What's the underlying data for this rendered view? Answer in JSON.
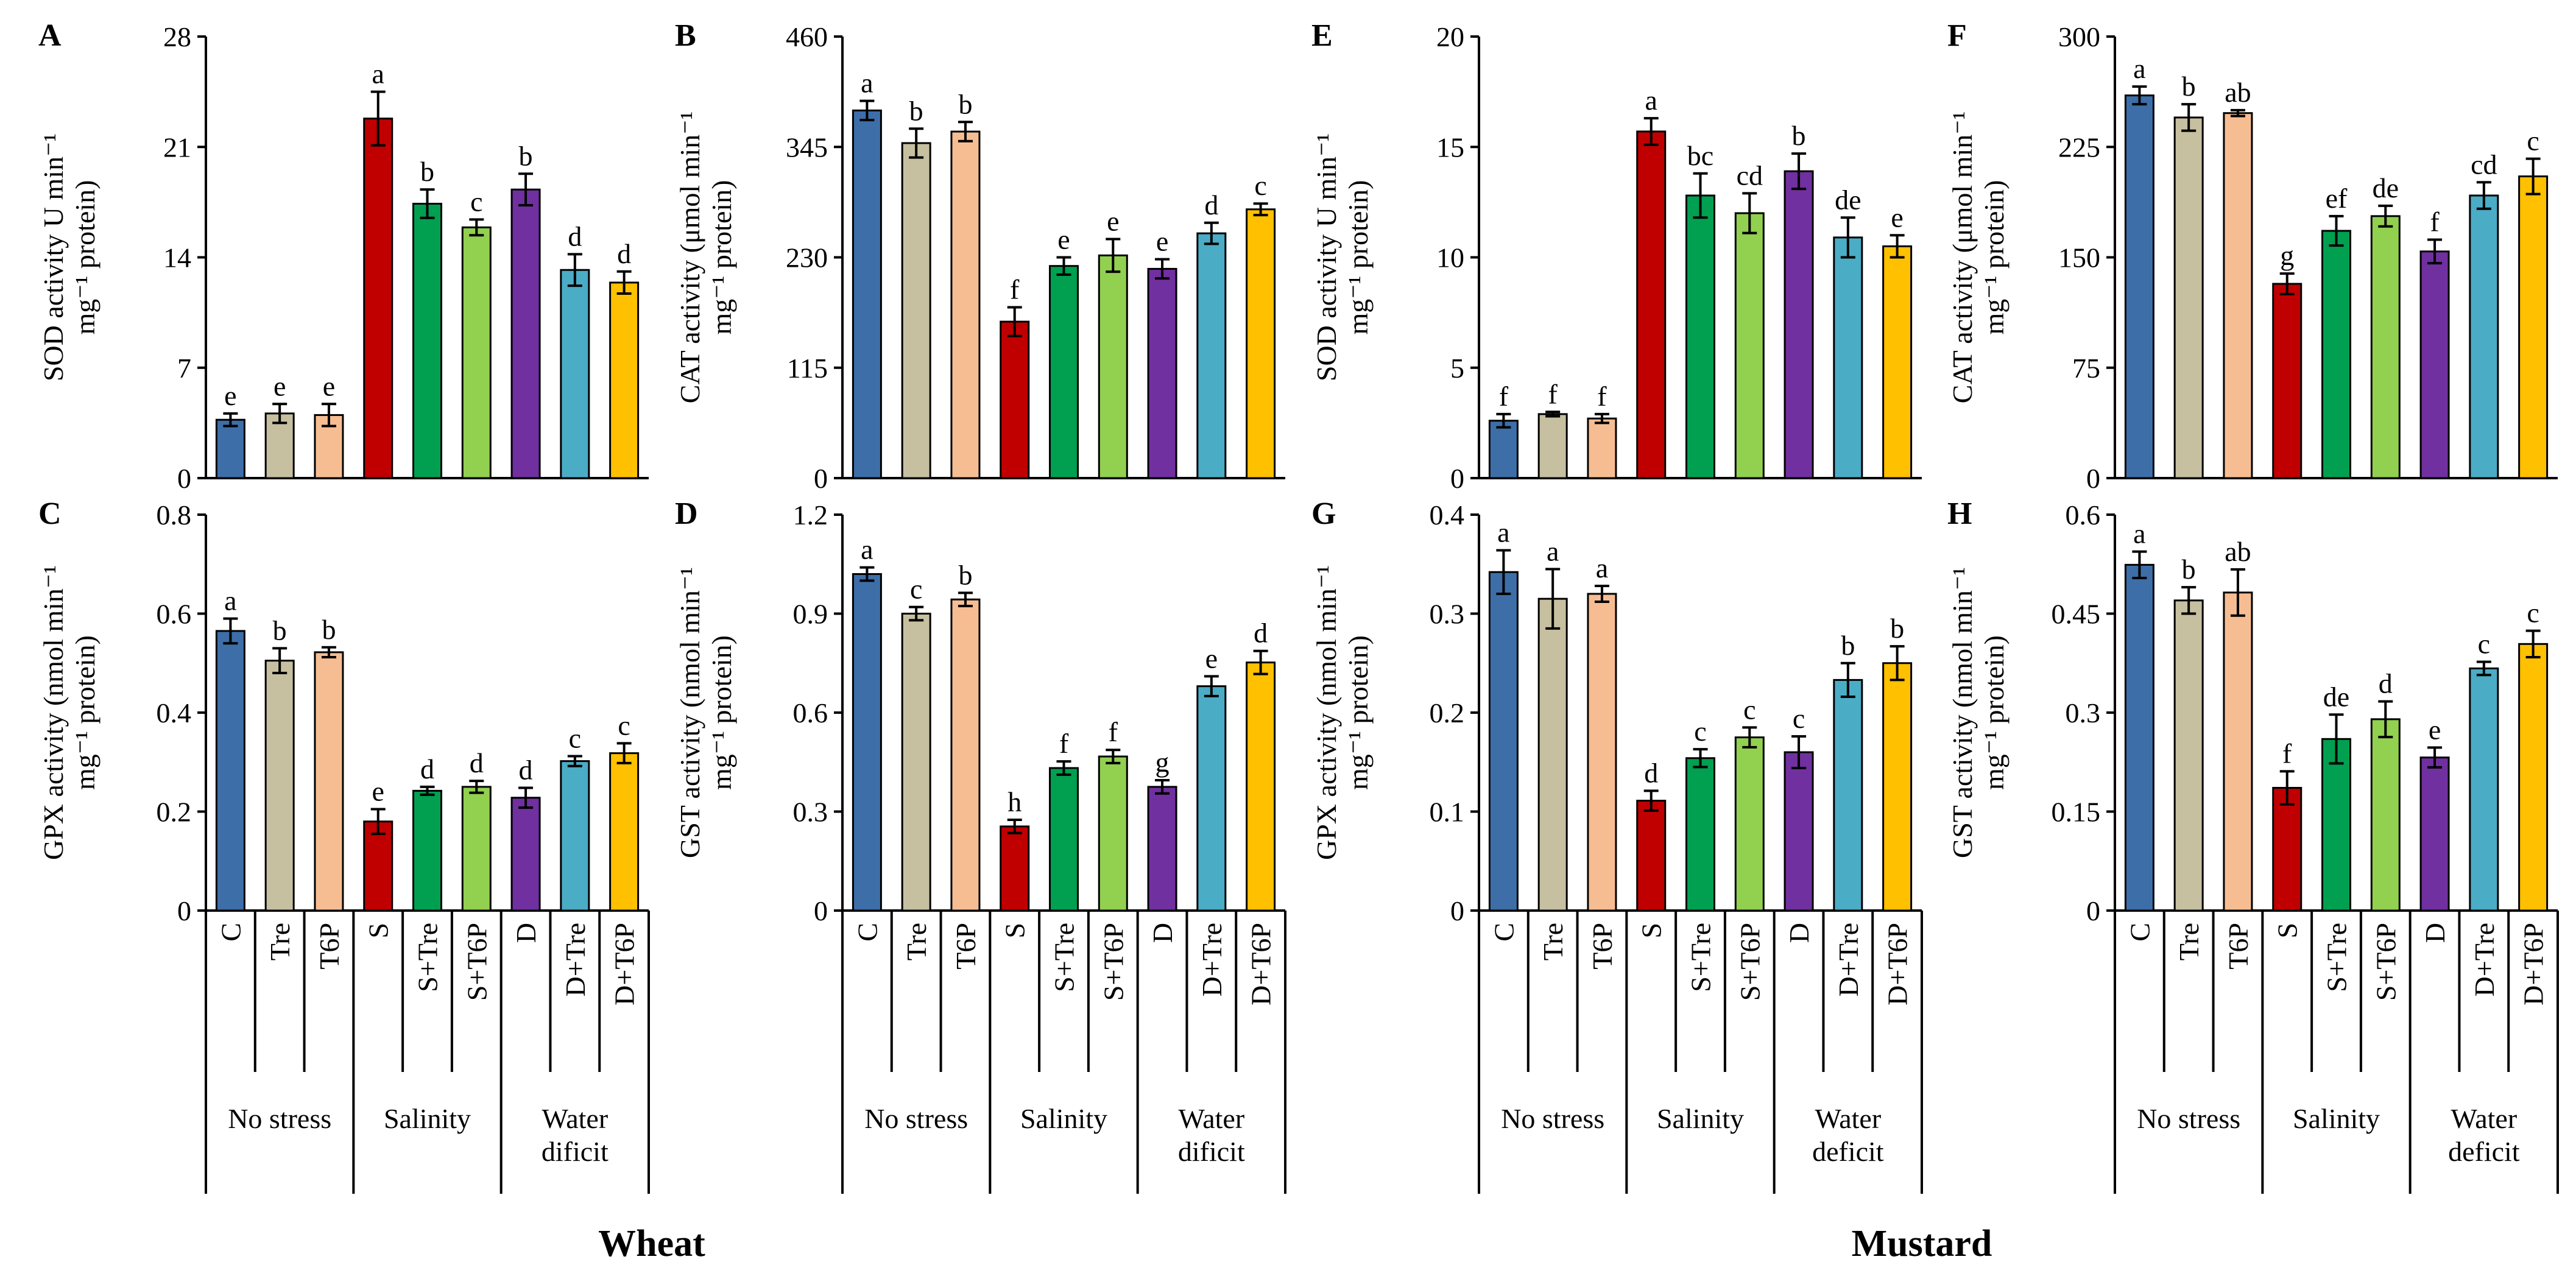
{
  "figure": {
    "species_labels": [
      "Wheat",
      "Mustard"
    ]
  },
  "x_axis": {
    "categories": [
      "C",
      "Tre",
      "T6P",
      "S",
      "S+Tre",
      "S+T6P",
      "D",
      "D+Tre",
      "D+T6P"
    ],
    "groups": [
      {
        "lines": [
          "No stress"
        ]
      },
      {
        "lines": [
          "Salinity"
        ]
      },
      {
        "lines": [
          "Water",
          "dificit"
        ]
      }
    ],
    "groups_mustard": [
      {
        "lines": [
          "No stress"
        ]
      },
      {
        "lines": [
          "Salinity"
        ]
      },
      {
        "lines": [
          "Water",
          "deficit"
        ]
      }
    ]
  },
  "colors": {
    "bars": [
      "#3d6ea8",
      "#c6c0a0",
      "#f7bd92",
      "#c00000",
      "#00a050",
      "#92d050",
      "#7030a0",
      "#4bacc6",
      "#ffc000"
    ],
    "error_bar": "#000000"
  },
  "chart_data": [
    {
      "panel": "A",
      "type": "bar",
      "species": "Wheat",
      "parameter": "SOD",
      "ylabel_lines": [
        "SOD activity U min⁻¹",
        "mg⁻¹ protein)"
      ],
      "ylim": [
        0,
        28
      ],
      "yticks": [
        "0",
        "7",
        "14",
        "21",
        "28"
      ],
      "values": [
        3.7,
        4.1,
        4.0,
        22.8,
        17.4,
        15.9,
        18.3,
        13.2,
        12.4
      ],
      "errors": [
        0.4,
        0.6,
        0.7,
        1.7,
        0.9,
        0.5,
        1.0,
        1.0,
        0.7
      ],
      "letters": [
        "e",
        "e",
        "e",
        "a",
        "b",
        "c",
        "b",
        "d",
        "d"
      ]
    },
    {
      "panel": "B",
      "type": "bar",
      "species": "Wheat",
      "parameter": "CAT",
      "ylabel_lines": [
        "CAT activity (μmol min⁻¹",
        "mg⁻¹ protein)"
      ],
      "ylim": [
        0,
        460
      ],
      "yticks": [
        "0",
        "115",
        "230",
        "345",
        "460"
      ],
      "values": [
        383,
        349,
        361,
        163,
        221,
        232,
        218,
        255,
        280
      ],
      "errors": [
        10,
        15,
        10,
        15,
        9,
        17,
        10,
        11,
        6
      ],
      "letters": [
        "a",
        "b",
        "b",
        "f",
        "e",
        "e",
        "e",
        "d",
        "c"
      ]
    },
    {
      "panel": "C",
      "type": "bar",
      "species": "Wheat",
      "parameter": "GPX",
      "ylabel_lines": [
        "GPX activity (nmol min⁻¹",
        "mg⁻¹ protein)"
      ],
      "ylim": [
        0,
        0.8
      ],
      "yticks": [
        "0",
        "0.2",
        "0.4",
        "0.6",
        "0.8"
      ],
      "values": [
        0.565,
        0.505,
        0.522,
        0.18,
        0.242,
        0.25,
        0.228,
        0.302,
        0.318
      ],
      "errors": [
        0.025,
        0.025,
        0.01,
        0.025,
        0.008,
        0.012,
        0.02,
        0.01,
        0.02
      ],
      "letters": [
        "a",
        "b",
        "b",
        "e",
        "d",
        "d",
        "d",
        "c",
        "c"
      ]
    },
    {
      "panel": "D",
      "type": "bar",
      "species": "Wheat",
      "parameter": "GST",
      "ylabel_lines": [
        "GST activity (nmol min⁻¹",
        "mg⁻¹ protein)"
      ],
      "ylim": [
        0,
        1.2
      ],
      "yticks": [
        "0",
        "0.3",
        "0.6",
        "0.9",
        "1.2"
      ],
      "values": [
        1.02,
        0.9,
        0.943,
        0.255,
        0.432,
        0.467,
        0.375,
        0.68,
        0.752
      ],
      "errors": [
        0.02,
        0.02,
        0.02,
        0.02,
        0.02,
        0.02,
        0.02,
        0.03,
        0.035
      ],
      "letters": [
        "a",
        "c",
        "b",
        "h",
        "f",
        "f",
        "g",
        "e",
        "d"
      ]
    },
    {
      "panel": "E",
      "type": "bar",
      "species": "Mustard",
      "parameter": "SOD",
      "ylabel_lines": [
        "SOD activity U min⁻¹",
        "mg⁻¹ protein)"
      ],
      "ylim": [
        0,
        20
      ],
      "yticks": [
        "0",
        "5",
        "10",
        "15",
        "20"
      ],
      "values": [
        2.6,
        2.9,
        2.7,
        15.7,
        12.8,
        12.0,
        13.9,
        10.9,
        10.5
      ],
      "errors": [
        0.3,
        0.1,
        0.2,
        0.6,
        1.0,
        0.9,
        0.8,
        0.9,
        0.5
      ],
      "letters": [
        "f",
        "f",
        "f",
        "a",
        "bc",
        "cd",
        "b",
        "de",
        "e"
      ]
    },
    {
      "panel": "F",
      "type": "bar",
      "species": "Mustard",
      "parameter": "CAT",
      "ylabel_lines": [
        "CAT activity (μmol min⁻¹",
        "mg⁻¹ protein)"
      ],
      "ylim": [
        0,
        300
      ],
      "yticks": [
        "0",
        "75",
        "150",
        "225",
        "300"
      ],
      "values": [
        260,
        245,
        248,
        132,
        168,
        178,
        154,
        192,
        205
      ],
      "errors": [
        6,
        9,
        2,
        7,
        10,
        7,
        8,
        9,
        12
      ],
      "letters": [
        "a",
        "b",
        "ab",
        "g",
        "ef",
        "de",
        "f",
        "cd",
        "c"
      ]
    },
    {
      "panel": "G",
      "type": "bar",
      "species": "Mustard",
      "parameter": "GPX",
      "ylabel_lines": [
        "GPX activity (nmol min⁻¹",
        "mg⁻¹ protein)"
      ],
      "ylim": [
        0,
        0.4
      ],
      "yticks": [
        "0",
        "0.1",
        "0.2",
        "0.3",
        "0.4"
      ],
      "values": [
        0.342,
        0.315,
        0.32,
        0.111,
        0.154,
        0.175,
        0.16,
        0.233,
        0.25
      ],
      "errors": [
        0.022,
        0.03,
        0.008,
        0.01,
        0.009,
        0.01,
        0.016,
        0.017,
        0.017
      ],
      "letters": [
        "a",
        "a",
        "a",
        "d",
        "c",
        "c",
        "c",
        "b",
        "b"
      ]
    },
    {
      "panel": "H",
      "type": "bar",
      "species": "Mustard",
      "parameter": "GST",
      "ylabel_lines": [
        "GST activity (nmol min⁻¹",
        "mg⁻¹ protein)"
      ],
      "ylim": [
        0,
        0.6
      ],
      "yticks": [
        "0",
        "0.15",
        "0.3",
        "0.45",
        "0.6"
      ],
      "values": [
        0.524,
        0.47,
        0.482,
        0.186,
        0.26,
        0.29,
        0.232,
        0.367,
        0.404
      ],
      "errors": [
        0.02,
        0.02,
        0.035,
        0.025,
        0.037,
        0.027,
        0.015,
        0.01,
        0.02
      ],
      "letters": [
        "a",
        "b",
        "ab",
        "f",
        "de",
        "d",
        "e",
        "c",
        "c"
      ]
    }
  ]
}
